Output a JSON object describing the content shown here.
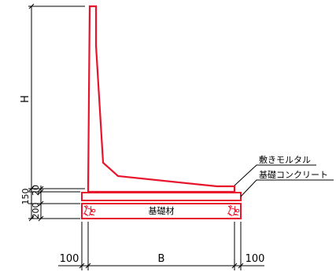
{
  "labels": {
    "height": "H",
    "base_width": "B",
    "dim_150": "150",
    "dim_20": "20",
    "dim_200": "200",
    "dim_left_100": "100",
    "dim_right_100": "100",
    "foundation": "基礎材",
    "leveling_mortar": "敷きモルタル",
    "foundation_concrete": "基礎コンクリート"
  },
  "colors": {
    "structure": "#e8142c",
    "dimension": "#000000"
  }
}
